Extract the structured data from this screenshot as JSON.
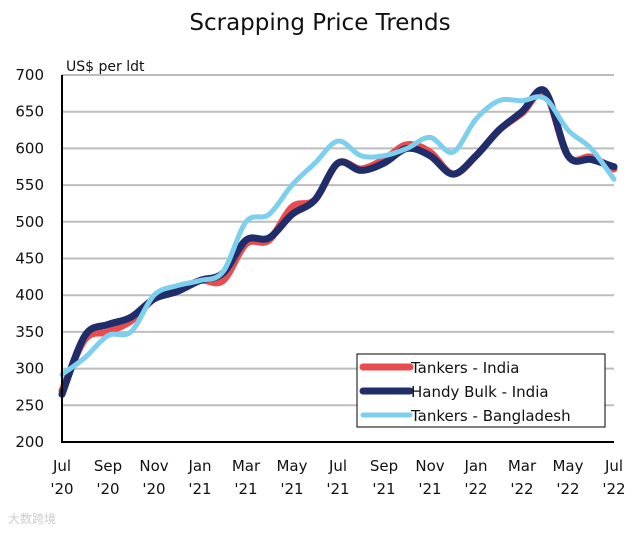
{
  "chart_data": {
    "type": "line",
    "title": "Scrapping Price Trends",
    "ylabel": "US$ per ldt",
    "xlabel": "",
    "ylim": [
      200,
      700
    ],
    "yticks": [
      200,
      250,
      300,
      350,
      400,
      450,
      500,
      550,
      600,
      650,
      700
    ],
    "grid": true,
    "legend_position": "bottom-right",
    "xtick_labels": [
      [
        "Jul",
        "'20"
      ],
      [
        "Sep",
        "'20"
      ],
      [
        "Nov",
        "'20"
      ],
      [
        "Jan",
        "'21"
      ],
      [
        "Mar",
        "'21"
      ],
      [
        "May",
        "'21"
      ],
      [
        "Jul",
        "'21"
      ],
      [
        "Sep",
        "'21"
      ],
      [
        "Nov",
        "'21"
      ],
      [
        "Jan",
        "'22"
      ],
      [
        "Mar",
        "'22"
      ],
      [
        "May",
        "'22"
      ],
      [
        "Jul",
        "'22"
      ]
    ],
    "x": [
      "Jul 20",
      "Aug 20",
      "Sep 20",
      "Oct 20",
      "Nov 20",
      "Dec 20",
      "Jan 21",
      "Feb 21",
      "Mar 21",
      "Apr 21",
      "May 21",
      "Jun 21",
      "Jul 21",
      "Aug 21",
      "Sep 21",
      "Oct 21",
      "Nov 21",
      "Dec 21",
      "Jan 22",
      "Feb 22",
      "Mar 22",
      "Apr 22",
      "May 22",
      "Jun 22",
      "Jul 22"
    ],
    "series": [
      {
        "name": "Tankers - India",
        "color": "#e84c4f",
        "values": [
          270,
          340,
          350,
          365,
          395,
          405,
          420,
          420,
          470,
          475,
          520,
          530,
          580,
          572,
          585,
          605,
          595,
          565,
          590,
          625,
          648,
          675,
          590,
          588,
          572
        ]
      },
      {
        "name": "Handy Bulk - India",
        "color": "#1f2d6b",
        "values": [
          265,
          345,
          360,
          370,
          395,
          405,
          420,
          430,
          475,
          478,
          510,
          530,
          580,
          570,
          580,
          600,
          590,
          565,
          590,
          625,
          650,
          678,
          590,
          585,
          575
        ]
      },
      {
        "name": "Tankers - Bangladesh",
        "color": "#7dcfee",
        "values": [
          292,
          315,
          345,
          350,
          400,
          413,
          420,
          432,
          500,
          510,
          550,
          580,
          610,
          590,
          590,
          600,
          615,
          595,
          640,
          665,
          665,
          668,
          625,
          600,
          558
        ]
      }
    ]
  },
  "watermark": "大数跨境"
}
